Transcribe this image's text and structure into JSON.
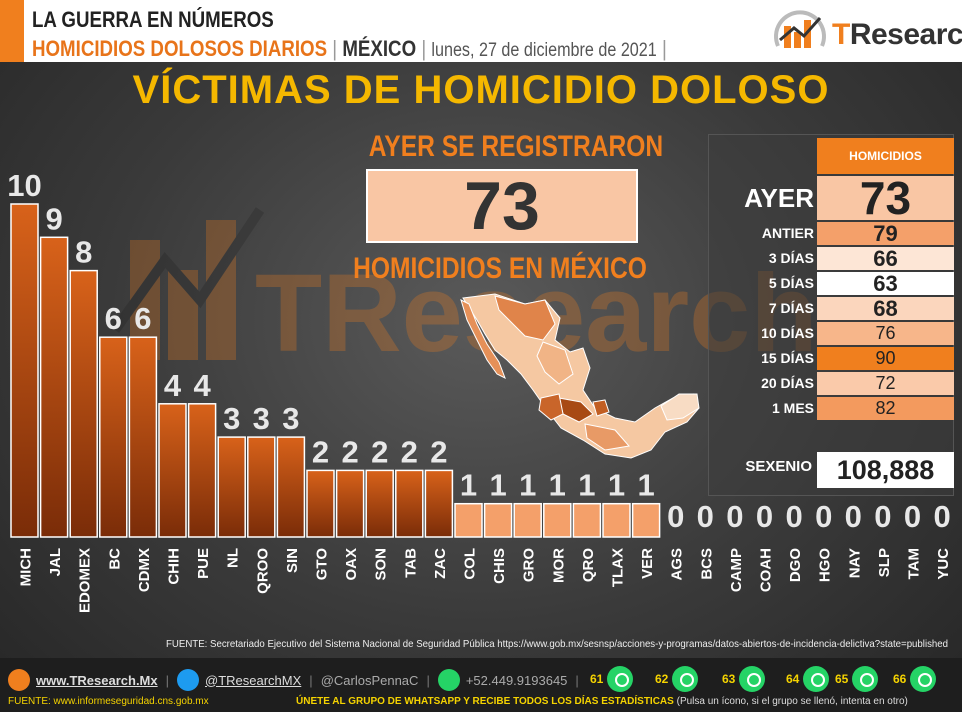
{
  "header": {
    "title": "LA GUERRA EN NÚMEROS",
    "subtitle": "HOMICIDIOS DOLOSOS DIARIOS",
    "country": "MÉXICO",
    "date": "lunes, 27 de diciembre de 2021",
    "sep": "|",
    "brand_t": "T",
    "brand_rest": "Research"
  },
  "main_title": "VÍCTIMAS DE HOMICIDIO DOLOSO",
  "watermark": "TResearch",
  "center": {
    "top_label": "AYER SE REGISTRARON",
    "value": "73",
    "bottom_label": "HOMICIDIOS EN MÉXICO"
  },
  "table": {
    "header": "HOMICIDIOS",
    "rows": [
      {
        "label": "AYER",
        "value": "73",
        "color": "#f9c6a4"
      },
      {
        "label": "ANTIER",
        "value": "79",
        "color": "#f4a06a"
      },
      {
        "label": "3 DÍAS",
        "value": "66",
        "color": "#fde6d6"
      },
      {
        "label": "5 DÍAS",
        "value": "63",
        "color": "#ffffff"
      },
      {
        "label": "7 DÍAS",
        "value": "68",
        "color": "#fbd6bd"
      },
      {
        "label": "10 DÍAS",
        "value": "76",
        "color": "#f7b68a"
      },
      {
        "label": "15 DÍAS",
        "value": "90",
        "color": "#f07f1e"
      },
      {
        "label": "20 DÍAS",
        "value": "72",
        "color": "#facaaa"
      },
      {
        "label": "1 MES",
        "value": "82",
        "color": "#f39a5e"
      }
    ],
    "sexenio_label": "SEXENIO",
    "sexenio_value": "108,888"
  },
  "chart_data": {
    "type": "bar",
    "categories": [
      "MICH",
      "JAL",
      "EDOMEX",
      "BC",
      "CDMX",
      "CHIH",
      "PUE",
      "NL",
      "QROO",
      "SIN",
      "GTO",
      "OAX",
      "SON",
      "TAB",
      "ZAC",
      "COL",
      "CHIS",
      "GRO",
      "MOR",
      "QRO",
      "TLAX",
      "VER",
      "AGS",
      "BCS",
      "CAMP",
      "COAH",
      "DGO",
      "HGO",
      "NAY",
      "SLP",
      "TAM",
      "YUC"
    ],
    "values": [
      10,
      9,
      8,
      6,
      6,
      4,
      4,
      3,
      3,
      3,
      2,
      2,
      2,
      2,
      2,
      1,
      1,
      1,
      1,
      1,
      1,
      1,
      0,
      0,
      0,
      0,
      0,
      0,
      0,
      0,
      0,
      0
    ],
    "ylim": [
      0,
      10
    ],
    "colors": {
      "top": "#d8621a",
      "bottom": "#7a2c08",
      "light": "#f4a06a"
    }
  },
  "source": "FUENTE: Secretariado Ejecutivo del Sistema Nacional de Seguridad Pública https://www.gob.mx/sesnsp/acciones-y-programas/datos-abiertos-de-incidencia-delictiva?state=published",
  "footer": {
    "web": "www.TResearch.Mx",
    "twitter": "@TResearchMX",
    "twitter2": "@CarlosPennaC",
    "phone": "+52.449.9193645",
    "sep": "|",
    "wa_groups": [
      "61",
      "62",
      "63",
      "64",
      "65",
      "66"
    ],
    "source": "FUENTE: www.informeseguridad.cns.gob.mx",
    "join": "ÚNETE AL GRUPO DE WHATSAPP Y RECIBE TODOS LOS DÍAS ESTADÍSTICAS",
    "join_note": "(Pulsa un ícono, si el grupo se llenó, intenta en otro)"
  }
}
